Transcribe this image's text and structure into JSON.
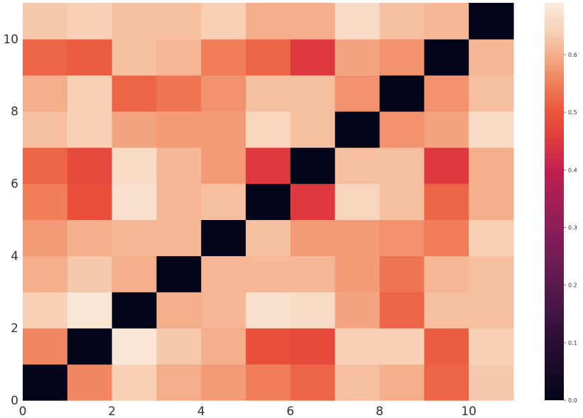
{
  "chart_data": {
    "type": "heatmap",
    "title": "",
    "xlabel": "",
    "ylabel": "",
    "x_ticks": [
      "0",
      "2",
      "4",
      "6",
      "8",
      "10"
    ],
    "y_ticks": [
      "0",
      "2",
      "4",
      "6",
      "8",
      "10"
    ],
    "x_range": [
      0,
      11
    ],
    "y_range": [
      0,
      11
    ],
    "rows_bottom_to_top": [
      [
        0.0,
        0.56,
        0.64,
        0.6,
        0.58,
        0.55,
        0.52,
        0.62,
        0.6,
        0.52,
        0.63
      ],
      [
        0.56,
        0.0,
        0.68,
        0.63,
        0.6,
        0.49,
        0.48,
        0.64,
        0.64,
        0.51,
        0.64
      ],
      [
        0.64,
        0.68,
        0.0,
        0.6,
        0.61,
        0.67,
        0.66,
        0.59,
        0.52,
        0.62,
        0.62
      ],
      [
        0.6,
        0.63,
        0.6,
        0.0,
        0.61,
        0.61,
        0.61,
        0.58,
        0.54,
        0.61,
        0.62
      ],
      [
        0.58,
        0.6,
        0.61,
        0.61,
        0.0,
        0.62,
        0.58,
        0.58,
        0.57,
        0.55,
        0.64
      ],
      [
        0.55,
        0.49,
        0.67,
        0.61,
        0.62,
        0.0,
        0.45,
        0.65,
        0.62,
        0.52,
        0.6
      ],
      [
        0.52,
        0.48,
        0.66,
        0.61,
        0.58,
        0.45,
        0.0,
        0.62,
        0.62,
        0.45,
        0.6
      ],
      [
        0.62,
        0.64,
        0.59,
        0.58,
        0.58,
        0.65,
        0.62,
        0.0,
        0.57,
        0.59,
        0.66
      ],
      [
        0.6,
        0.64,
        0.52,
        0.54,
        0.57,
        0.62,
        0.62,
        0.57,
        0.0,
        0.57,
        0.62
      ],
      [
        0.52,
        0.51,
        0.62,
        0.61,
        0.55,
        0.52,
        0.45,
        0.59,
        0.57,
        0.0,
        0.61
      ],
      [
        0.63,
        0.64,
        0.62,
        0.62,
        0.64,
        0.6,
        0.6,
        0.66,
        0.62,
        0.61,
        0.0
      ]
    ],
    "colorscale": "rocket",
    "value_range": [
      0.0,
      0.69
    ],
    "colorbar_ticks": [
      "0.0",
      "0.1",
      "0.2",
      "0.3",
      "0.4",
      "0.5",
      "0.6"
    ],
    "colorbar_tick_values": [
      0.0,
      0.1,
      0.2,
      0.3,
      0.4,
      0.5,
      0.6
    ],
    "colorbar_placement": "right",
    "grid": false
  },
  "colorscale_stops": [
    {
      "v": 0.0,
      "color": "#03051a"
    },
    {
      "v": 0.1,
      "color": "#2a0e34"
    },
    {
      "v": 0.2,
      "color": "#581a4e"
    },
    {
      "v": 0.3,
      "color": "#8b1d5a"
    },
    {
      "v": 0.4,
      "color": "#c0204f"
    },
    {
      "v": 0.45,
      "color": "#dd393f"
    },
    {
      "v": 0.5,
      "color": "#ea553a"
    },
    {
      "v": 0.55,
      "color": "#f07e59"
    },
    {
      "v": 0.6,
      "color": "#f4ae8a"
    },
    {
      "v": 0.64,
      "color": "#f7d0b6"
    },
    {
      "v": 0.69,
      "color": "#faebdd"
    }
  ]
}
